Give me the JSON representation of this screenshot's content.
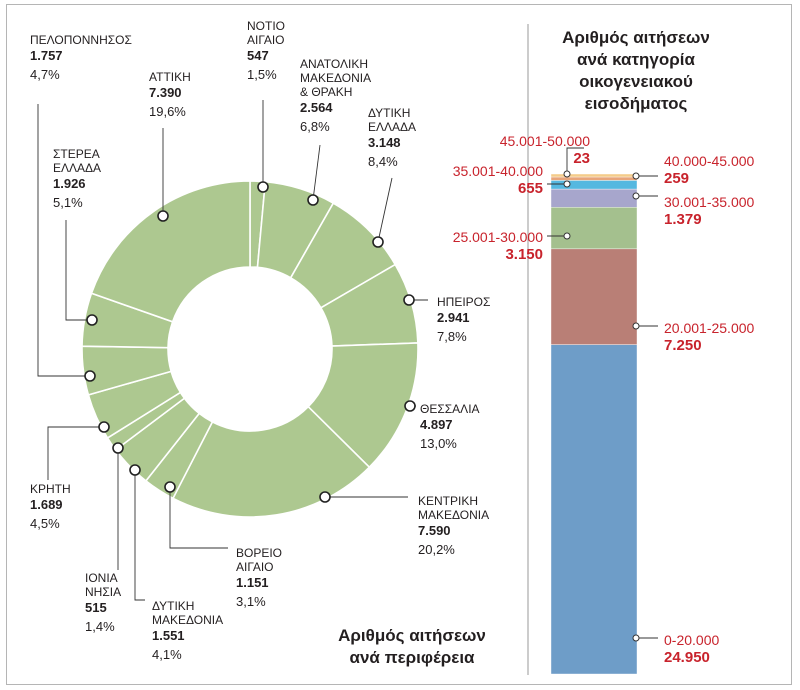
{
  "chart_data": [
    {
      "type": "pie",
      "title": "Αριθμός αιτήσεων ανά περιφέρεια",
      "segments": [
        {
          "label": "ΝΟΤΙΟ ΑΙΓΑΙΟ",
          "value": "547",
          "percent": "1,5%"
        },
        {
          "label": "ΑΝΑΤΟΛΙΚΗ ΜΑΚΕΔΟΝΙΑ & ΘΡΑΚΗ",
          "value": "2.564",
          "percent": "6,8%"
        },
        {
          "label": "ΔΥΤΙΚΗ ΕΛΛΑΔΑ",
          "value": "3.148",
          "percent": "8,4%"
        },
        {
          "label": "ΗΠΕΙΡΟΣ",
          "value": "2.941",
          "percent": "7,8%"
        },
        {
          "label": "ΘΕΣΣΑΛΙΑ",
          "value": "4.897",
          "percent": "13,0%"
        },
        {
          "label": "ΚΕΝΤΡΙΚΗ ΜΑΚΕΔΟΝΙΑ",
          "value": "7.590",
          "percent": "20,2%"
        },
        {
          "label": "ΒΟΡΕΙΟ ΑΙΓΑΙΟ",
          "value": "1.151",
          "percent": "3,1%"
        },
        {
          "label": "ΔΥΤΙΚΗ ΜΑΚΕΔΟΝΙΑ",
          "value": "1.551",
          "percent": "4,1%"
        },
        {
          "label": "ΙΟΝΙΑ ΝΗΣΙΑ",
          "value": "515",
          "percent": "1,4%"
        },
        {
          "label": "ΚΡΗΤΗ",
          "value": "1.689",
          "percent": "4,5%"
        },
        {
          "label": "ΠΕΛΟΠΟΝΝΗΣΟΣ",
          "value": "1.757",
          "percent": "4,7%"
        },
        {
          "label": "ΣΤΕΡΕΑ ΕΛΛΑΔΑ",
          "value": "1.926",
          "percent": "5,1%"
        },
        {
          "label": "ΑΤΤΙΚΗ",
          "value": "7.390",
          "percent": "19,6%"
        }
      ],
      "colors": {
        "fill": "#adc890",
        "divider": "#ffffff",
        "leader": "#333333"
      }
    },
    {
      "type": "bar",
      "title": "Αριθμός αιτήσεων ανά κατηγορία οικογενειακού εισοδήματος",
      "stacked": true,
      "segments": [
        {
          "label": "0-20.000",
          "value": "24.950",
          "color": "#6e9dc8"
        },
        {
          "label": "20.001-25.000",
          "value": "7.250",
          "color": "#b97f76"
        },
        {
          "label": "25.001-30.000",
          "value": "3.150",
          "color": "#a4c08e"
        },
        {
          "label": "30.001-35.000",
          "value": "1.379",
          "color": "#a7a6cc"
        },
        {
          "label": "35.001-40.000",
          "value": "655",
          "color": "#55b8e0"
        },
        {
          "label": "40.000-45.000",
          "value": "259",
          "color": "#e8a57a"
        },
        {
          "label": "45.001-50.000",
          "value": "23",
          "color": "#f4cc8a"
        }
      ],
      "colors": {
        "label": "#c8232c",
        "track": "#e6e6e6"
      }
    }
  ]
}
